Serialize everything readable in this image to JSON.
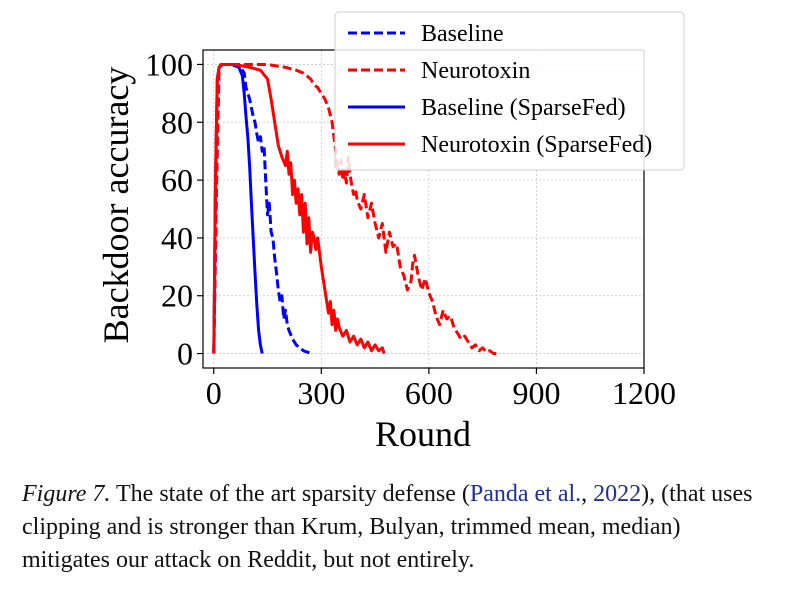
{
  "chart_data": {
    "type": "line",
    "title": "",
    "xlabel": "Round",
    "ylabel": "Backdoor accuracy",
    "xlim": [
      -30,
      1200
    ],
    "ylim": [
      -5,
      105
    ],
    "xticks": [
      0,
      300,
      600,
      900,
      1200
    ],
    "yticks": [
      0,
      20,
      40,
      60,
      80,
      100
    ],
    "grid": true,
    "legend_position": "top-right",
    "series": [
      {
        "name": "Baseline",
        "color": "#0000ff",
        "dash": "dashed",
        "x": [
          0,
          8,
          15,
          25,
          40,
          60,
          75,
          85,
          90,
          100,
          105,
          110,
          115,
          120,
          125,
          130,
          135,
          140,
          145,
          150,
          155,
          160,
          165,
          170,
          175,
          180,
          185,
          190,
          195,
          200,
          205,
          210,
          220,
          230,
          240,
          250,
          260,
          275
        ],
        "y": [
          0,
          60,
          99,
          100,
          100,
          100,
          99,
          97,
          92,
          88,
          85,
          82,
          80,
          76,
          73,
          75,
          70,
          72,
          60,
          48,
          52,
          42,
          40,
          33,
          28,
          22,
          18,
          20,
          12,
          15,
          10,
          8,
          5,
          3,
          2,
          1,
          0.5,
          0
        ]
      },
      {
        "name": "Neurotoxin",
        "color": "#ff0000",
        "dash": "dashed",
        "x": [
          0,
          8,
          15,
          25,
          50,
          100,
          150,
          200,
          230,
          250,
          260,
          270,
          280,
          290,
          300,
          310,
          320,
          330,
          335,
          340,
          345,
          350,
          355,
          360,
          365,
          370,
          375,
          380,
          385,
          390,
          395,
          400,
          410,
          420,
          430,
          440,
          450,
          460,
          470,
          480,
          490,
          500,
          510,
          520,
          530,
          540,
          550,
          555,
          560,
          570,
          580,
          590,
          600,
          610,
          620,
          630,
          640,
          650,
          660,
          670,
          680,
          690,
          700,
          710,
          720,
          730,
          740,
          750,
          760,
          770,
          780,
          790
        ],
        "y": [
          0,
          60,
          99,
          100,
          100,
          100,
          100,
          99,
          98,
          97,
          96,
          95,
          93,
          92,
          90,
          88,
          85,
          80,
          75,
          70,
          65,
          62,
          67,
          60,
          63,
          59,
          68,
          62,
          58,
          55,
          57,
          53,
          50,
          55,
          47,
          52,
          45,
          40,
          45,
          35,
          42,
          37,
          38,
          30,
          27,
          22,
          25,
          31,
          34,
          27,
          22,
          26,
          21,
          18,
          13,
          10,
          15,
          12,
          13,
          9,
          7,
          5,
          6,
          4,
          2,
          3,
          1,
          2,
          0.5,
          1,
          0,
          0
        ]
      },
      {
        "name": "Baseline (SparseFed)",
        "color": "#0000ff",
        "dash": "solid",
        "x": [
          0,
          5,
          10,
          15,
          20,
          30,
          50,
          70,
          80,
          85,
          90,
          95,
          100,
          105,
          110,
          115,
          120,
          125,
          130,
          135
        ],
        "y": [
          0,
          60,
          95,
          99,
          100,
          100,
          100,
          99,
          96,
          90,
          82,
          75,
          65,
          52,
          40,
          28,
          17,
          8,
          3,
          0
        ]
      },
      {
        "name": "Neurotoxin (SparseFed)",
        "color": "#ff0000",
        "dash": "solid",
        "x": [
          0,
          5,
          10,
          15,
          20,
          30,
          60,
          100,
          130,
          150,
          160,
          170,
          180,
          190,
          200,
          205,
          210,
          215,
          220,
          225,
          230,
          235,
          240,
          245,
          250,
          255,
          260,
          265,
          270,
          275,
          280,
          285,
          290,
          295,
          300,
          310,
          320,
          325,
          330,
          335,
          340,
          345,
          350,
          360,
          370,
          380,
          390,
          400,
          410,
          420,
          430,
          440,
          450,
          460,
          470,
          475
        ],
        "y": [
          0,
          60,
          95,
          99,
          100,
          100,
          100,
          99,
          98,
          95,
          88,
          80,
          72,
          68,
          65,
          70,
          62,
          66,
          55,
          60,
          52,
          57,
          48,
          55,
          42,
          52,
          38,
          47,
          35,
          42,
          40,
          36,
          40,
          35,
          30,
          22,
          14,
          18,
          10,
          15,
          8,
          12,
          9,
          6,
          8,
          4,
          6,
          3,
          5,
          2,
          4,
          1,
          3,
          1,
          2,
          0
        ]
      }
    ]
  },
  "caption": {
    "label": "Figure 7.",
    "text_before": " The state of the art sparsity defense (",
    "cite_author": "Panda et al.",
    "cite_sep": ", ",
    "cite_year": "2022",
    "text_after": "), (that uses clipping and is stronger than Krum, Bulyan, trimmed mean, median) mitigates our attack on Reddit, but not entirely."
  }
}
